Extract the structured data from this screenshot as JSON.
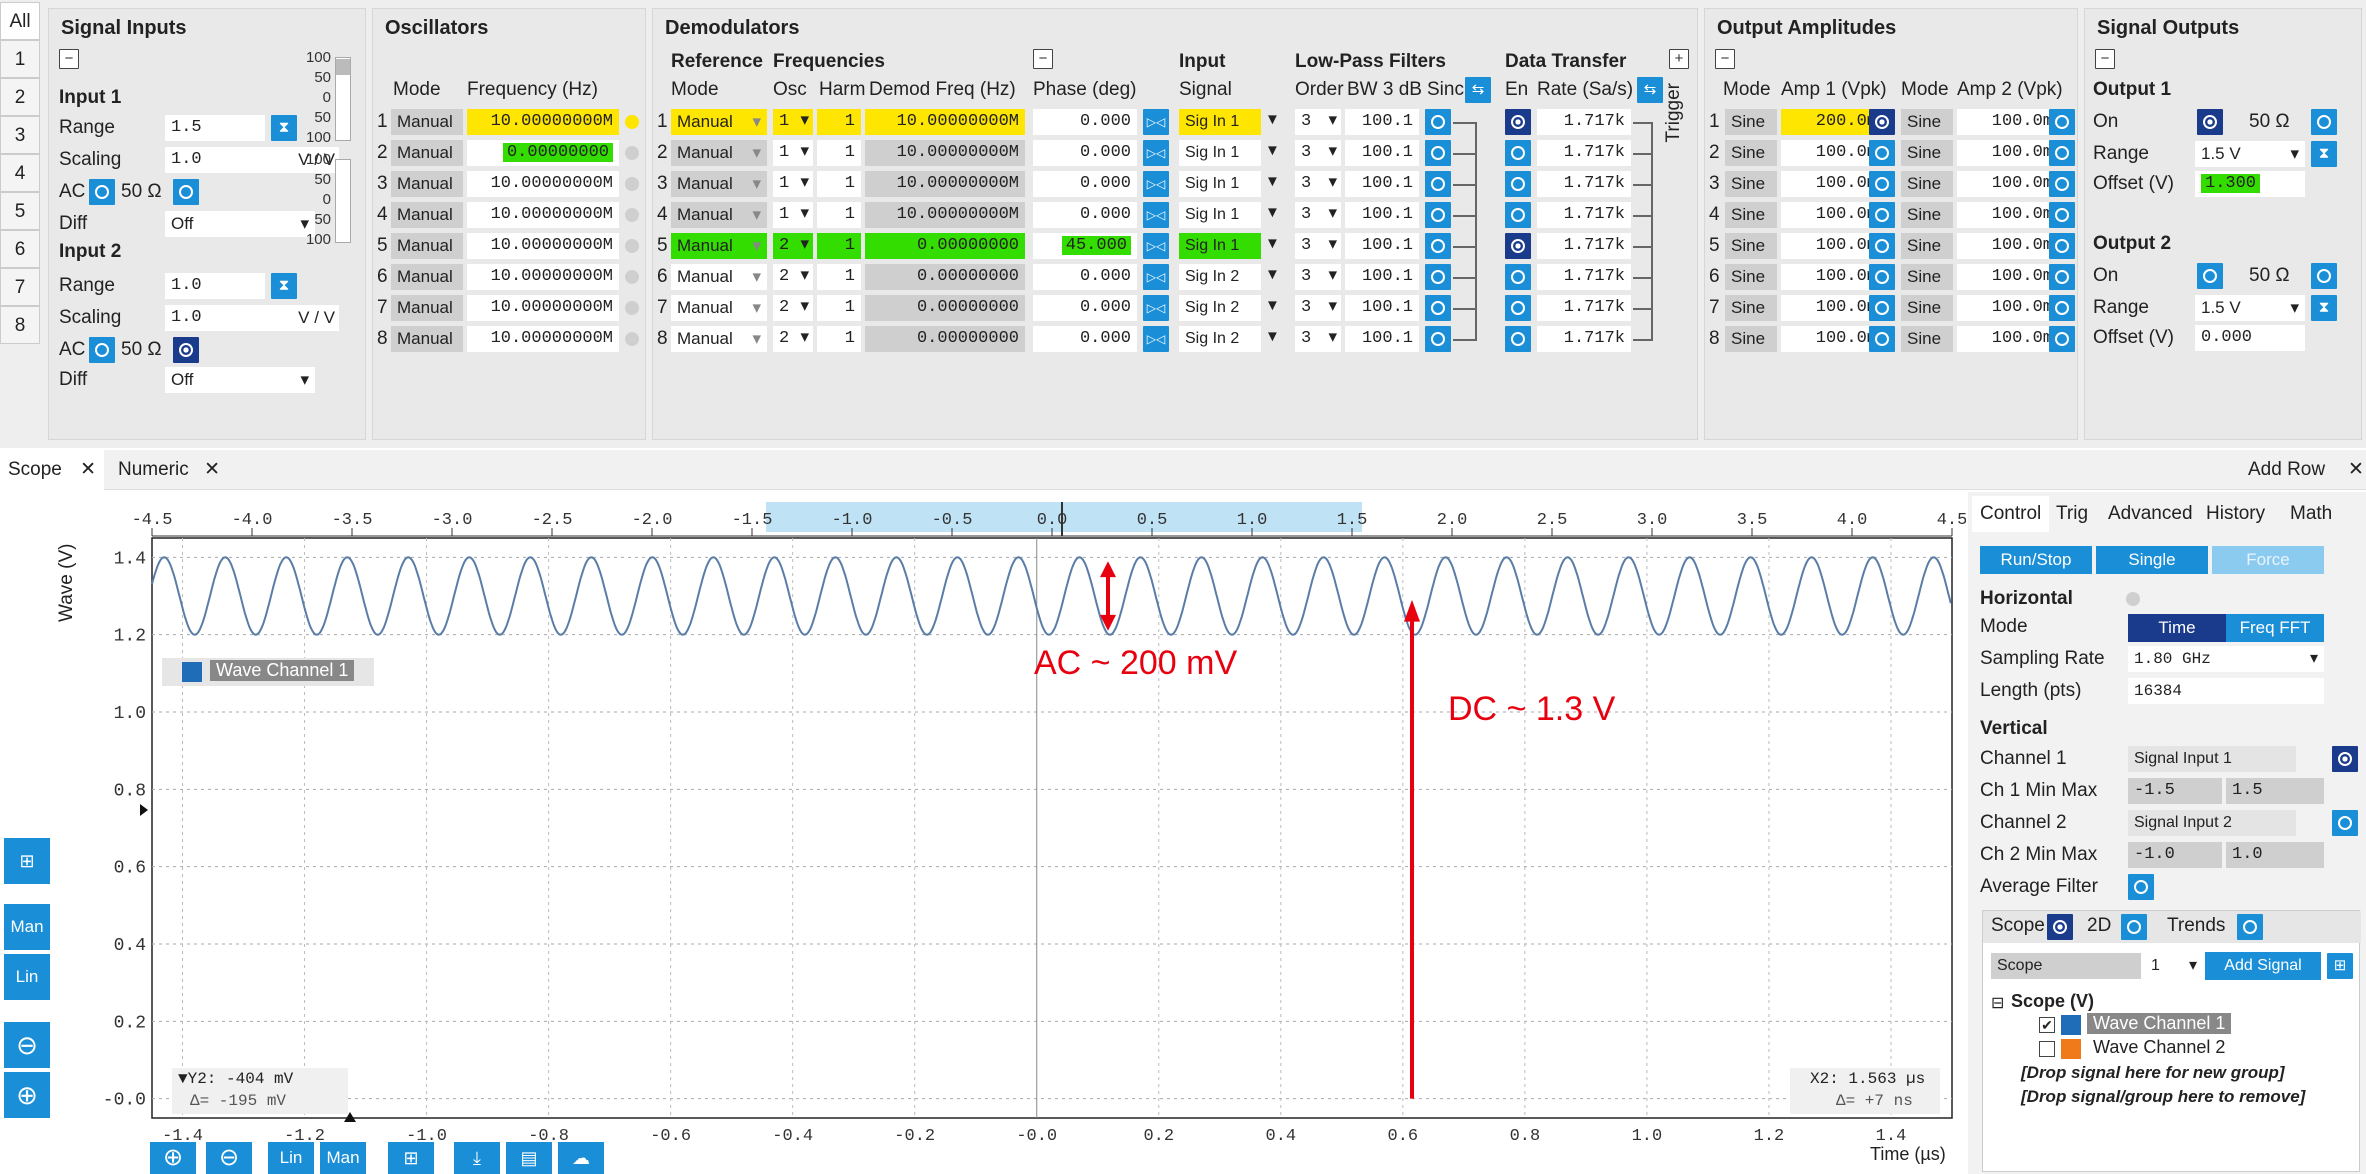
{
  "sidetabs": [
    "All",
    "1",
    "2",
    "3",
    "4",
    "5",
    "6",
    "7",
    "8"
  ],
  "signal_inputs": {
    "title": "Signal Inputs",
    "in1": {
      "title": "Input 1",
      "range_label": "Range",
      "range": "1.5",
      "scaling_label": "Scaling",
      "scaling": "1.0",
      "unit": "V / V",
      "ac": "AC",
      "ohm": "50 Ω",
      "diff_label": "Diff",
      "diff": "Off"
    },
    "in2": {
      "title": "Input 2",
      "range_label": "Range",
      "range": "1.0",
      "scaling_label": "Scaling",
      "scaling": "1.0",
      "unit": "V / V",
      "ac": "AC",
      "ohm": "50 Ω",
      "diff_label": "Diff",
      "diff": "Off"
    },
    "meter": [
      "100",
      "50",
      "0",
      "50",
      "100"
    ]
  },
  "oscillators": {
    "title": "Oscillators",
    "mode_hdr": "Mode",
    "freq_hdr": "Frequency (Hz)",
    "rows": [
      {
        "n": "1",
        "mode": "Manual",
        "freq": "10.00000000M"
      },
      {
        "n": "2",
        "mode": "Manual",
        "freq": "0.00000000"
      },
      {
        "n": "3",
        "mode": "Manual",
        "freq": "10.00000000M"
      },
      {
        "n": "4",
        "mode": "Manual",
        "freq": "10.00000000M"
      },
      {
        "n": "5",
        "mode": "Manual",
        "freq": "10.00000000M"
      },
      {
        "n": "6",
        "mode": "Manual",
        "freq": "10.00000000M"
      },
      {
        "n": "7",
        "mode": "Manual",
        "freq": "10.00000000M"
      },
      {
        "n": "8",
        "mode": "Manual",
        "freq": "10.00000000M"
      }
    ]
  },
  "demodulators": {
    "title": "Demodulators",
    "ref": "Reference",
    "freqs": "Frequencies",
    "input": "Input",
    "lpf": "Low-Pass Filters",
    "dt": "Data Transfer",
    "trigger": "Trigger",
    "h_mode": "Mode",
    "h_osc": "Osc",
    "h_harm": "Harm",
    "h_dfreq": "Demod Freq (Hz)",
    "h_phase": "Phase (deg)",
    "h_signal": "Signal",
    "h_order": "Order",
    "h_bw": "BW 3 dB",
    "h_sinc": "Sinc",
    "h_en": "En",
    "h_rate": "Rate (Sa/s)",
    "rows": [
      {
        "n": "1",
        "mode": "Manual",
        "osc": "1",
        "harm": "1",
        "dfreq": "10.00000000M",
        "phase": "0.000",
        "signal": "Sig In 1",
        "order": "3",
        "bw": "100.1",
        "rate": "1.717k"
      },
      {
        "n": "2",
        "mode": "Manual",
        "osc": "1",
        "harm": "1",
        "dfreq": "10.00000000M",
        "phase": "0.000",
        "signal": "Sig In 1",
        "order": "3",
        "bw": "100.1",
        "rate": "1.717k"
      },
      {
        "n": "3",
        "mode": "Manual",
        "osc": "1",
        "harm": "1",
        "dfreq": "10.00000000M",
        "phase": "0.000",
        "signal": "Sig In 1",
        "order": "3",
        "bw": "100.1",
        "rate": "1.717k"
      },
      {
        "n": "4",
        "mode": "Manual",
        "osc": "1",
        "harm": "1",
        "dfreq": "10.00000000M",
        "phase": "0.000",
        "signal": "Sig In 1",
        "order": "3",
        "bw": "100.1",
        "rate": "1.717k"
      },
      {
        "n": "5",
        "mode": "Manual",
        "osc": "2",
        "harm": "1",
        "dfreq": "0.00000000",
        "phase": "45.000",
        "signal": "Sig In 1",
        "order": "3",
        "bw": "100.1",
        "rate": "1.717k"
      },
      {
        "n": "6",
        "mode": "Manual",
        "osc": "2",
        "harm": "1",
        "dfreq": "0.00000000",
        "phase": "0.000",
        "signal": "Sig In 2",
        "order": "3",
        "bw": "100.1",
        "rate": "1.717k"
      },
      {
        "n": "7",
        "mode": "Manual",
        "osc": "2",
        "harm": "1",
        "dfreq": "0.00000000",
        "phase": "0.000",
        "signal": "Sig In 2",
        "order": "3",
        "bw": "100.1",
        "rate": "1.717k"
      },
      {
        "n": "8",
        "mode": "Manual",
        "osc": "2",
        "harm": "1",
        "dfreq": "0.00000000",
        "phase": "0.000",
        "signal": "Sig In 2",
        "order": "3",
        "bw": "100.1",
        "rate": "1.717k"
      }
    ]
  },
  "output_amps": {
    "title": "Output Amplitudes",
    "h_mode": "Mode",
    "h_amp1": "Amp 1 (Vpk)",
    "h_mode2": "Mode",
    "h_amp2": "Amp 2 (Vpk)",
    "rows": [
      {
        "n": "1",
        "m1": "Sine",
        "a1": "200.0m",
        "m2": "Sine",
        "a2": "100.0m"
      },
      {
        "n": "2",
        "m1": "Sine",
        "a1": "100.0m",
        "m2": "Sine",
        "a2": "100.0m"
      },
      {
        "n": "3",
        "m1": "Sine",
        "a1": "100.0m",
        "m2": "Sine",
        "a2": "100.0m"
      },
      {
        "n": "4",
        "m1": "Sine",
        "a1": "100.0m",
        "m2": "Sine",
        "a2": "100.0m"
      },
      {
        "n": "5",
        "m1": "Sine",
        "a1": "100.0m",
        "m2": "Sine",
        "a2": "100.0m"
      },
      {
        "n": "6",
        "m1": "Sine",
        "a1": "100.0m",
        "m2": "Sine",
        "a2": "100.0m"
      },
      {
        "n": "7",
        "m1": "Sine",
        "a1": "100.0m",
        "m2": "Sine",
        "a2": "100.0m"
      },
      {
        "n": "8",
        "m1": "Sine",
        "a1": "100.0m",
        "m2": "Sine",
        "a2": "100.0m"
      }
    ]
  },
  "signal_outputs": {
    "title": "Signal Outputs",
    "o1": {
      "title": "Output 1",
      "on": "On",
      "ohm": "50 Ω",
      "range_label": "Range",
      "range": "1.5 V",
      "offset_label": "Offset (V)",
      "offset": "1.300"
    },
    "o2": {
      "title": "Output 2",
      "on": "On",
      "ohm": "50 Ω",
      "range_label": "Range",
      "range": "1.5 V",
      "offset_label": "Offset (V)",
      "offset": "0.000"
    }
  },
  "tabs": {
    "scope": "Scope",
    "numeric": "Numeric",
    "add_row": "Add Row"
  },
  "scope": {
    "ylabel": "Wave (V)",
    "xlabel": "Time (µs)",
    "legend": "Wave Channel 1",
    "top_ticks": [
      "-4.5",
      "-4.0",
      "-3.5",
      "-3.0",
      "-2.5",
      "-2.0",
      "-1.5",
      "-1.0",
      "-0.5",
      "0.0",
      "0.5",
      "1.0",
      "1.5",
      "2.0",
      "2.5",
      "3.0",
      "3.5",
      "4.0",
      "4.5"
    ],
    "bottom_ticks": [
      "-1.4",
      "-1.2",
      "-1.0",
      "-0.8",
      "-0.6",
      "-0.4",
      "-0.2",
      "-0.0",
      "0.2",
      "0.4",
      "0.6",
      "0.8",
      "1.0",
      "1.2",
      "1.4"
    ],
    "y_ticks": [
      "1.4",
      "1.2",
      "1.0",
      "0.8",
      "0.6",
      "0.4",
      "0.2",
      "-0.0"
    ],
    "ann_ac": "AC ~ 200 mV",
    "ann_dc": "DC ~ 1.3 V",
    "y2": "▼Y2: -404 mV",
    "dy": "Δ= -195 mV",
    "x2": "X2: 1.563 µs",
    "dx": "Δ= +7 ns"
  },
  "chart_data": {
    "type": "line",
    "xlabel": "Time (µs)",
    "ylabel": "Wave (V)",
    "xlim": [
      -1.45,
      1.5
    ],
    "ylim": [
      -0.05,
      1.45
    ],
    "series": [
      {
        "name": "Wave Channel 1",
        "dc": 1.3,
        "amplitude": 0.1,
        "period": 0.1
      }
    ]
  },
  "control": {
    "tabs": [
      "Control",
      "Trig",
      "Advanced",
      "History",
      "Math"
    ],
    "run": "Run/Stop",
    "single": "Single",
    "force": "Force",
    "horizontal": "Horizontal",
    "mode_label": "Mode",
    "time": "Time",
    "fft": "Freq FFT",
    "sr_label": "Sampling Rate",
    "sr": "1.80 GHz",
    "len_label": "Length (pts)",
    "len": "16384",
    "vertical": "Vertical",
    "ch1_label": "Channel 1",
    "ch1": "Signal Input 1",
    "ch1mm_label": "Ch 1 Min Max",
    "ch1min": "-1.5",
    "ch1max": "1.5",
    "ch2_label": "Channel 2",
    "ch2": "Signal Input 2",
    "ch2mm_label": "Ch 2 Min Max",
    "ch2min": "-1.0",
    "ch2max": "1.0",
    "avg": "Average Filter"
  },
  "signals": {
    "tabs": [
      "Scope",
      "2D",
      "Trends"
    ],
    "scope_sel": "Scope",
    "num": "1",
    "add": "Add Signal",
    "group": "Scope (V)",
    "w1": "Wave Channel 1",
    "w2": "Wave Channel 2",
    "drop1": "[Drop signal here for new group]",
    "drop2": "[Drop signal/group here to remove]"
  },
  "tools": {
    "man": "Man",
    "lin": "Lin"
  }
}
